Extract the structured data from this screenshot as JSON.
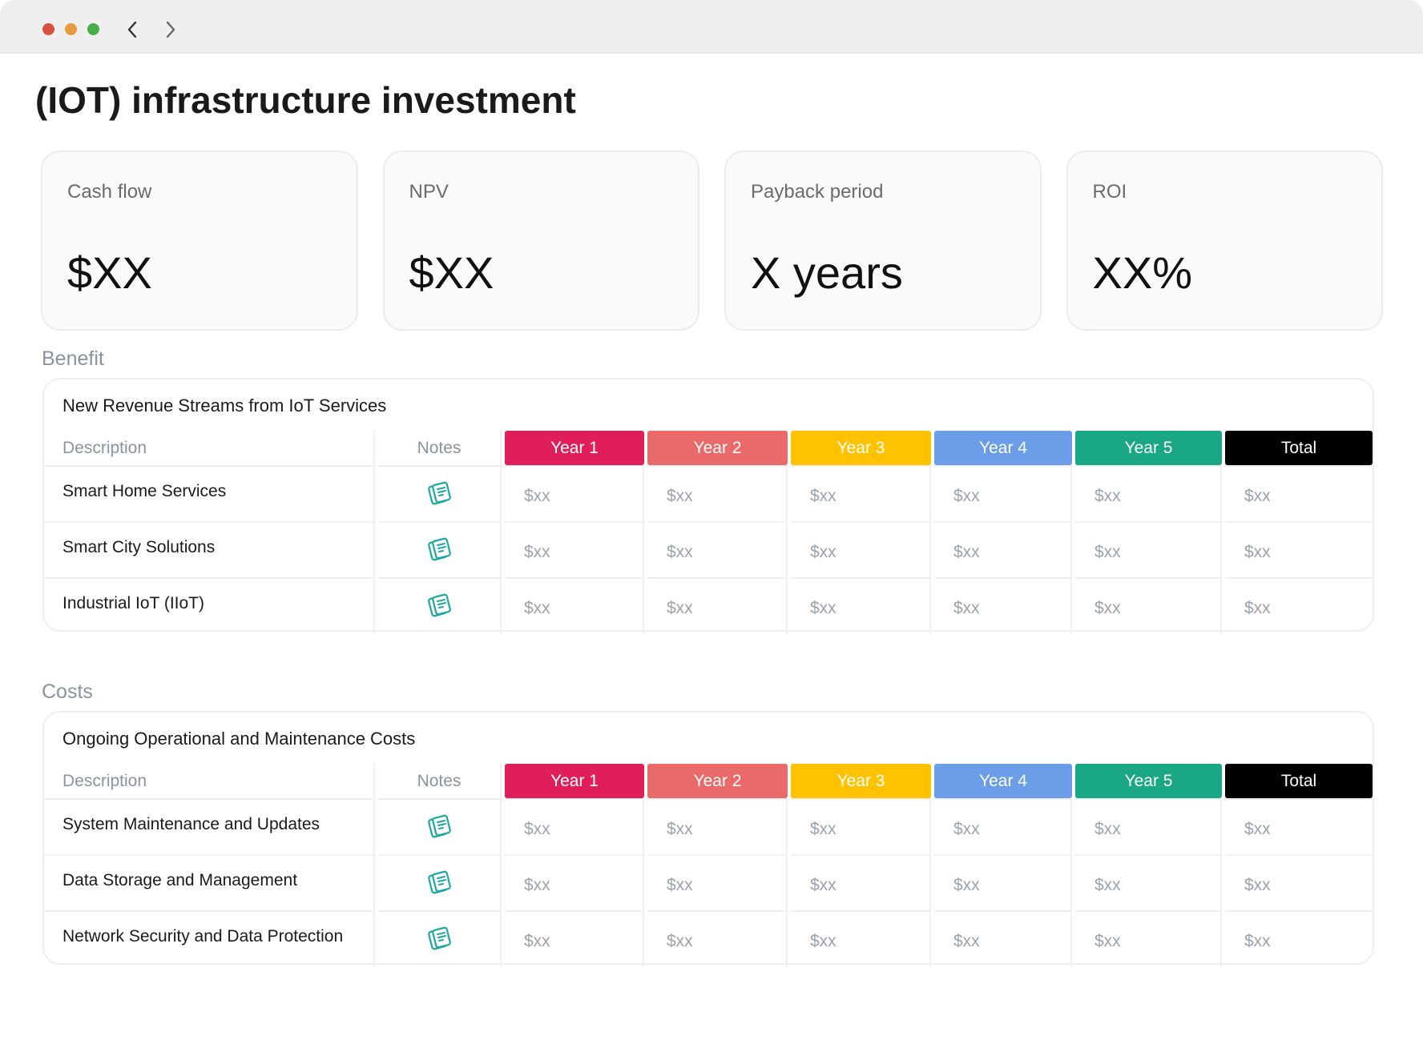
{
  "title": "(IOT) infrastructure investment",
  "cards": [
    {
      "label": "Cash flow",
      "value": "$XX"
    },
    {
      "label": "NPV",
      "value": "$XX"
    },
    {
      "label": "Payback period",
      "value": "X years"
    },
    {
      "label": "ROI",
      "value": "XX%"
    }
  ],
  "sections": [
    {
      "heading": "Benefit",
      "table": {
        "title": "New Revenue Streams from IoT Services",
        "columns": [
          "Description",
          "Notes",
          "Year 1",
          "Year 2",
          "Year 3",
          "Year 4",
          "Year 5",
          "Total"
        ],
        "rows": [
          {
            "description": "Smart Home Services",
            "cells": [
              "$xx",
              "$xx",
              "$xx",
              "$xx",
              "$xx",
              "$xx"
            ]
          },
          {
            "description": "Smart City Solutions",
            "cells": [
              "$xx",
              "$xx",
              "$xx",
              "$xx",
              "$xx",
              "$xx"
            ]
          },
          {
            "description": "Industrial IoT (IIoT)",
            "cells": [
              "$xx",
              "$xx",
              "$xx",
              "$xx",
              "$xx",
              "$xx"
            ]
          }
        ]
      }
    },
    {
      "heading": "Costs",
      "table": {
        "title": "Ongoing Operational and Maintenance Costs",
        "columns": [
          "Description",
          "Notes",
          "Year 1",
          "Year 2",
          "Year 3",
          "Year 4",
          "Year 5",
          "Total"
        ],
        "rows": [
          {
            "description": "System Maintenance and Updates",
            "cells": [
              "$xx",
              "$xx",
              "$xx",
              "$xx",
              "$xx",
              "$xx"
            ]
          },
          {
            "description": "Data Storage and Management",
            "cells": [
              "$xx",
              "$xx",
              "$xx",
              "$xx",
              "$xx",
              "$xx"
            ]
          },
          {
            "description": "Network Security and Data Protection",
            "cells": [
              "$xx",
              "$xx",
              "$xx",
              "$xx",
              "$xx",
              "$xx"
            ]
          }
        ]
      }
    }
  ]
}
